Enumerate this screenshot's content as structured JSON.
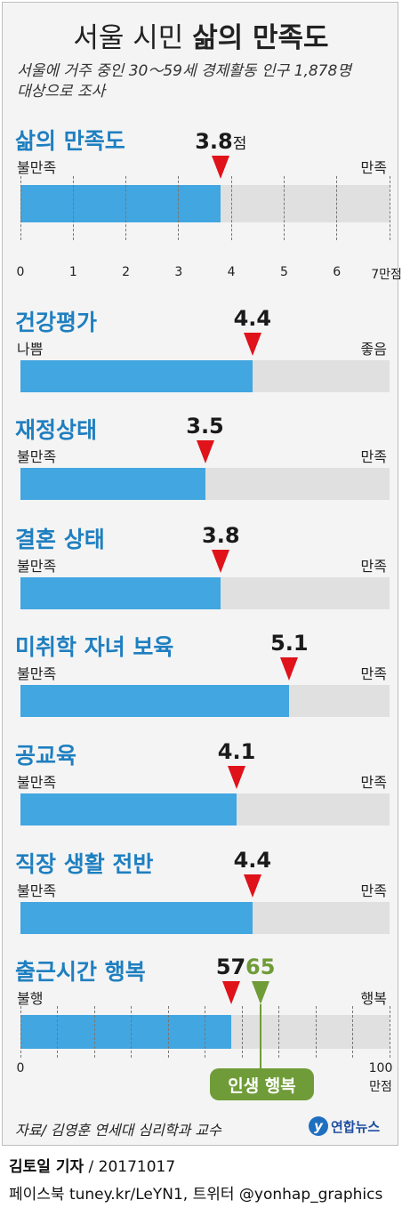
{
  "header": {
    "title_light": "서울 시민",
    "title_bold": "삶의 만족도",
    "subtitle_line1": "서울에 거주 중인 30～59세 경제활동 인구 1,878명",
    "subtitle_line2": "대상으로 조사"
  },
  "chart_data": {
    "type": "bar",
    "categories": [
      "삶의 만족도",
      "건강평가",
      "재정상태",
      "결혼 상태",
      "미취학 자녀 보육",
      "공교육",
      "직장 생활 전반"
    ],
    "values": [
      3.8,
      4.4,
      3.5,
      3.8,
      5.1,
      4.1,
      4.4
    ],
    "value_labels": [
      "3.8",
      "4.4",
      "3.5",
      "3.8",
      "5.1",
      "4.1",
      "4.4"
    ],
    "value_unit_first": "점",
    "scale_labels": [
      [
        "불만족",
        "만족"
      ],
      [
        "나쁨",
        "좋음"
      ],
      [
        "불만족",
        "만족"
      ],
      [
        "불만족",
        "만족"
      ],
      [
        "불만족",
        "만족"
      ],
      [
        "불만족",
        "만족"
      ],
      [
        "불만족",
        "만족"
      ]
    ],
    "xlim": [
      0,
      7
    ],
    "x_ticks": [
      "0",
      "1",
      "2",
      "3",
      "4",
      "5",
      "6",
      "7만점"
    ],
    "grid": true,
    "bar_color": "#42a6e0",
    "track_color": "#e0e0e0",
    "marker_color": "#e0121a",
    "commute": {
      "title": "출근시간 행복",
      "left_label": "불행",
      "right_label": "행복",
      "value": 57,
      "value_label": "57",
      "reference": 65,
      "reference_label": "65",
      "reference_badge": "인생 행복",
      "reference_color": "#6f9c38",
      "xlim": [
        0,
        100
      ],
      "tick_start": "0",
      "tick_end_line1": "100",
      "tick_end_line2": "만점"
    }
  },
  "footer": {
    "source": "자료/ 김영훈 연세대 심리학과 교수",
    "logo_text": "연합뉴스",
    "byline_name": "김토일 기자",
    "byline_date": " / 20171017",
    "social": "페이스북 tuney.kr/LeYN1, 트위터 @yonhap_graphics"
  }
}
